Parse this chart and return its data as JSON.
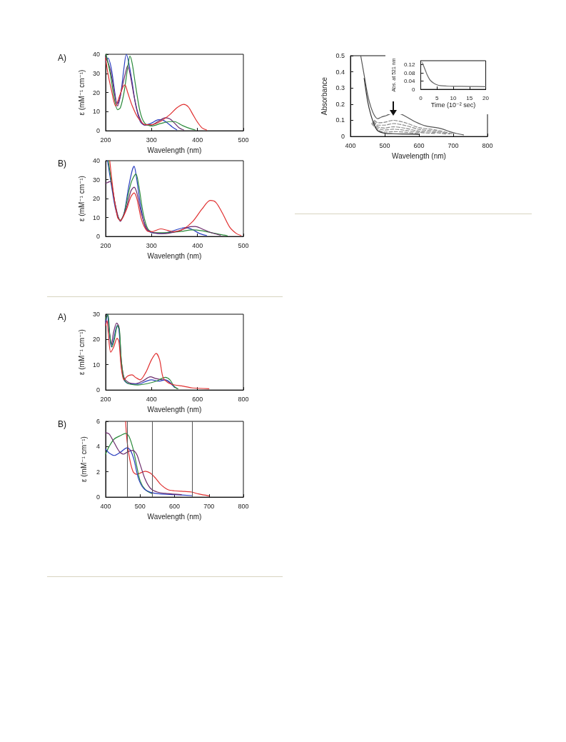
{
  "chart_data": [
    {
      "type": "line",
      "title": "A)",
      "xlabel": "Wavelength (nm)",
      "ylabel": "ε (mM⁻¹ cm⁻¹)",
      "xlim": [
        200,
        500
      ],
      "xticks": [
        200,
        300,
        400,
        500
      ],
      "ylim": [
        0,
        40
      ],
      "yticks": [
        0,
        10,
        20,
        30,
        40
      ],
      "series": [
        {
          "color": "#2b3fc0",
          "x": [
            200,
            205,
            212,
            220,
            225,
            232,
            240,
            245,
            250,
            258,
            265,
            275,
            285,
            300,
            315,
            325,
            335,
            345,
            355
          ],
          "values": [
            36,
            38,
            33,
            20,
            14,
            18,
            33,
            40,
            36,
            25,
            14,
            5,
            3,
            4,
            5.8,
            5.5,
            4,
            2,
            0.5
          ]
        },
        {
          "color": "#6b2a6b",
          "x": [
            200,
            210,
            222,
            226,
            235,
            243,
            248,
            253,
            262,
            272,
            285,
            300,
            315,
            330,
            340,
            350,
            360,
            370
          ],
          "values": [
            39,
            32,
            16,
            13,
            22,
            30,
            34,
            30,
            18,
            8,
            3,
            3,
            5,
            6.8,
            6.2,
            4,
            1.5,
            0.4
          ]
        },
        {
          "color": "#2a8a3a",
          "x": [
            201,
            210,
            218,
            226,
            232,
            240,
            248,
            253,
            258,
            265,
            275,
            285,
            300,
            320,
            340,
            350,
            365,
            380,
            395
          ],
          "values": [
            40,
            30,
            18,
            11,
            12,
            20,
            33,
            39,
            35,
            24,
            10,
            4,
            2.5,
            3.8,
            4.8,
            4.8,
            3,
            1.5,
            0.4
          ]
        },
        {
          "color": "#e03030",
          "x": [
            200,
            205,
            212,
            222,
            230,
            238,
            242,
            248,
            258,
            270,
            285,
            300,
            320,
            340,
            355,
            370,
            380,
            390,
            400,
            410,
            420
          ],
          "values": [
            38,
            30,
            22,
            13,
            18,
            23,
            24,
            20,
            13,
            7,
            3.3,
            3.2,
            5,
            8.5,
            12,
            13.8,
            12.5,
            8.5,
            4.5,
            1.5,
            0.4
          ]
        }
      ]
    },
    {
      "type": "line",
      "title": "B)",
      "xlabel": "Wavelength (nm)",
      "ylabel": "ε (mM⁻¹ cm⁻¹)",
      "xlim": [
        200,
        500
      ],
      "xticks": [
        200,
        300,
        400,
        500
      ],
      "ylim": [
        0,
        40
      ],
      "yticks": [
        0,
        10,
        20,
        30,
        40
      ],
      "series": [
        {
          "color": "#2b3fc0",
          "x": [
            204,
            212,
            222,
            232,
            240,
            250,
            258,
            262,
            266,
            275,
            285,
            295,
            320,
            340,
            360,
            375,
            390,
            405,
            420
          ],
          "values": [
            40,
            28,
            14,
            8.5,
            12,
            26,
            35,
            37,
            33,
            18,
            6,
            2.5,
            1.5,
            2.5,
            4,
            4.7,
            3.5,
            1.5,
            0.5
          ]
        },
        {
          "color": "#2a8a3a",
          "x": [
            206,
            215,
            225,
            232,
            240,
            255,
            266,
            272,
            282,
            292,
            305,
            330,
            360,
            390,
            410,
            430,
            450,
            465
          ],
          "values": [
            40,
            25,
            12,
            8.5,
            12,
            28,
            33,
            27,
            12,
            4,
            2,
            2,
            2.5,
            3.5,
            3,
            2,
            1,
            0.4
          ]
        },
        {
          "color": "#6b2a6b",
          "x": [
            200,
            210,
            220,
            232,
            245,
            255,
            262,
            268,
            278,
            290,
            305,
            330,
            360,
            385,
            395,
            410,
            430,
            450
          ],
          "values": [
            28,
            29,
            18,
            8,
            15,
            24,
            26,
            23,
            12,
            4,
            2,
            1.5,
            3,
            5.2,
            5.3,
            4,
            2,
            0.6
          ]
        },
        {
          "color": "#e03030",
          "x": [
            209,
            217,
            226,
            232,
            245,
            255,
            262,
            268,
            278,
            290,
            300,
            320,
            335,
            350,
            370,
            390,
            410,
            428,
            440,
            455,
            470,
            485,
            495
          ],
          "values": [
            40,
            23,
            10,
            8.5,
            14,
            21,
            23,
            20,
            9,
            3,
            2.5,
            4,
            3.2,
            2.5,
            4,
            8,
            14.5,
            19,
            18,
            12,
            5,
            1.5,
            0.5
          ]
        }
      ]
    },
    {
      "type": "line",
      "title": "A)",
      "xlabel": "Wavelength (nm)",
      "ylabel": "ε (mM⁻¹ cm⁻¹)",
      "xlim": [
        200,
        800
      ],
      "xticks": [
        200,
        400,
        600,
        800
      ],
      "ylim": [
        0,
        30
      ],
      "yticks": [
        0,
        10,
        20,
        30
      ],
      "series": [
        {
          "color": "#6b2a6b",
          "x": [
            200,
            208,
            215,
            225,
            235,
            248,
            258,
            268,
            280,
            300,
            330,
            360,
            395,
            420,
            450,
            470,
            490,
            510
          ],
          "values": [
            27,
            30,
            24,
            18,
            23,
            26.5,
            25,
            12,
            5,
            3,
            2.5,
            3.5,
            5.2,
            4.5,
            4,
            3.6,
            2,
            0.6
          ]
        },
        {
          "color": "#2b3fc0",
          "x": [
            200,
            208,
            215,
            225,
            235,
            250,
            258,
            268,
            280,
            300,
            340,
            380,
            400,
            430,
            460,
            480,
            500
          ],
          "values": [
            26,
            30,
            24,
            17,
            20,
            25.5,
            24,
            10,
            4,
            2.5,
            2.3,
            3.6,
            4,
            3.5,
            4,
            3,
            1
          ]
        },
        {
          "color": "#2a8a3a",
          "x": [
            200,
            210,
            218,
            228,
            238,
            252,
            260,
            268,
            280,
            300,
            340,
            380,
            420,
            460,
            480,
            500,
            515
          ],
          "values": [
            28,
            30,
            22,
            17,
            20,
            25.5,
            24,
            12,
            4.5,
            2.5,
            2,
            2.5,
            3.5,
            5,
            4,
            1.2,
            0.5
          ]
        },
        {
          "color": "#e03030",
          "x": [
            200,
            206,
            212,
            222,
            235,
            250,
            258,
            268,
            280,
            295,
            315,
            330,
            350,
            375,
            400,
            420,
            435,
            450,
            470,
            500,
            540,
            580,
            650
          ],
          "values": [
            25.5,
            27.5,
            22,
            15,
            17,
            20.5,
            19,
            9,
            4,
            5.5,
            6,
            5,
            4,
            7,
            12,
            14.5,
            12,
            5,
            3,
            2,
            1.5,
            0.8,
            0.5
          ]
        }
      ]
    },
    {
      "type": "line",
      "title": "B)",
      "xlabel": "Wavelength (nm)",
      "ylabel": "ε (mM⁻¹ cm⁻¹)",
      "xlim": [
        400,
        800
      ],
      "xticks": [
        400,
        500,
        600,
        700,
        800
      ],
      "ylim": [
        0,
        6
      ],
      "yticks": [
        0,
        2,
        4,
        6
      ],
      "ref_lines": [
        {
          "axis": "x",
          "value": 462,
          "color": "#555555"
        },
        {
          "axis": "x",
          "value": 535,
          "color": "#555555"
        },
        {
          "axis": "x",
          "value": 652,
          "color": "#555555"
        }
      ],
      "series": [
        {
          "color": "#e03030",
          "x": [
            458,
            462,
            470,
            480,
            490,
            500,
            515,
            530,
            545,
            560,
            580,
            600,
            630,
            650,
            670,
            700
          ],
          "values": [
            6,
            4.5,
            3,
            2,
            1.8,
            1.9,
            2.05,
            1.9,
            1.5,
            1,
            0.6,
            0.5,
            0.45,
            0.4,
            0.25,
            0.1
          ]
        },
        {
          "color": "#2a8a3a",
          "x": [
            400,
            410,
            425,
            445,
            458,
            468,
            480,
            490,
            500,
            515,
            535
          ],
          "values": [
            3.4,
            4,
            4.6,
            4.9,
            5.05,
            4.8,
            3.8,
            2.5,
            1.3,
            0.6,
            0.28
          ]
        },
        {
          "color": "#2b3fc0",
          "x": [
            400,
            410,
            425,
            445,
            462,
            472,
            482,
            495,
            510,
            530,
            560,
            600,
            650
          ],
          "values": [
            3.8,
            3.5,
            3.3,
            3.6,
            3.9,
            3.7,
            3,
            1.5,
            0.7,
            0.38,
            0.25,
            0.2,
            0.12
          ]
        },
        {
          "color": "#6b2a6b",
          "x": [
            400,
            410,
            425,
            440,
            452,
            465,
            478,
            490,
            500,
            515,
            530,
            550,
            580,
            620
          ],
          "values": [
            5.1,
            5,
            4.3,
            3.6,
            3.4,
            3.6,
            3.7,
            3.4,
            2.6,
            1.4,
            0.7,
            0.4,
            0.28,
            0.2
          ]
        }
      ]
    },
    {
      "type": "line",
      "xlabel": "Wavelength (nm)",
      "ylabel": "Absorbance",
      "xlim": [
        400,
        800
      ],
      "xticks": [
        400,
        500,
        600,
        700,
        800
      ],
      "ylim": [
        0,
        0.5
      ],
      "yticks": [
        0,
        0.1,
        0.2,
        0.3,
        0.4,
        0.5
      ],
      "series": [
        {
          "color": "#555555",
          "line_style": "solid",
          "x": [
            430,
            440,
            450,
            460,
            470,
            480,
            490,
            505,
            525,
            545,
            565,
            590,
            620,
            650,
            670,
            690,
            710,
            730
          ],
          "values": [
            0.5,
            0.38,
            0.26,
            0.18,
            0.13,
            0.11,
            0.12,
            0.13,
            0.145,
            0.14,
            0.12,
            0.09,
            0.065,
            0.055,
            0.045,
            0.03,
            0.018,
            0.01
          ]
        },
        {
          "color": "#888888",
          "line_style": "dashed",
          "x": [
            470,
            480,
            500,
            525,
            560,
            600,
            650,
            700
          ],
          "values": [
            0.1,
            0.085,
            0.088,
            0.1,
            0.085,
            0.055,
            0.04,
            0.015
          ]
        },
        {
          "color": "#888888",
          "line_style": "dashed",
          "x": [
            468,
            480,
            500,
            525,
            560,
            600,
            650,
            690
          ],
          "values": [
            0.095,
            0.07,
            0.07,
            0.08,
            0.068,
            0.044,
            0.032,
            0.015
          ]
        },
        {
          "color": "#888888",
          "line_style": "dashed",
          "x": [
            466,
            480,
            500,
            525,
            560,
            600,
            650,
            680
          ],
          "values": [
            0.09,
            0.06,
            0.052,
            0.06,
            0.051,
            0.033,
            0.024,
            0.014
          ]
        },
        {
          "color": "#888888",
          "line_style": "dashed",
          "x": [
            464,
            480,
            500,
            525,
            560,
            600,
            650
          ],
          "values": [
            0.085,
            0.05,
            0.04,
            0.045,
            0.038,
            0.025,
            0.018
          ]
        },
        {
          "color": "#888888",
          "line_style": "dashed",
          "x": [
            462,
            480,
            500,
            525,
            560,
            600
          ],
          "values": [
            0.08,
            0.04,
            0.027,
            0.03,
            0.026,
            0.017
          ]
        },
        {
          "color": "#333333",
          "line_style": "solid",
          "x": [
            440,
            450,
            460,
            470,
            480,
            500,
            525,
            560,
            600
          ],
          "values": [
            0.36,
            0.22,
            0.13,
            0.07,
            0.035,
            0.02,
            0.017,
            0.015,
            0.013
          ]
        }
      ]
    },
    {
      "type": "line",
      "xlabel": "Time (10⁻² sec)",
      "ylabel": "Abs. at 521 nm",
      "xlim": [
        0,
        20
      ],
      "xticks": [
        0,
        5,
        10,
        15,
        20
      ],
      "ylim": [
        0,
        0.14
      ],
      "yticks": [
        0,
        0.04,
        0.08,
        0.12
      ],
      "series": [
        {
          "color": "#666666",
          "x": [
            0.5,
            1,
            1.5,
            2,
            2.5,
            3,
            4,
            5,
            6,
            8,
            10,
            15,
            20
          ],
          "values": [
            0.13,
            0.11,
            0.09,
            0.07,
            0.055,
            0.043,
            0.03,
            0.022,
            0.018,
            0.016,
            0.015,
            0.014,
            0.013
          ]
        }
      ]
    }
  ]
}
